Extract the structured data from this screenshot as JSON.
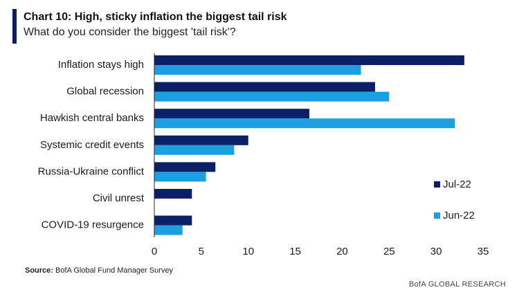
{
  "title": "Chart 10: High, sticky inflation the biggest tail risk",
  "subtitle": "What do you consider the biggest 'tail risk'?",
  "source": {
    "label": "Source:",
    "text": "BofA Global Fund Manager Survey"
  },
  "footer": "BofA GLOBAL RESEARCH",
  "chart_data": {
    "type": "bar",
    "orientation": "horizontal",
    "categories": [
      "Inflation stays high",
      "Global recession",
      "Hawkish central banks",
      "Systemic credit events",
      "Russia-Ukraine conflict",
      "Civil unrest",
      "COVID-19 resurgence"
    ],
    "series": [
      {
        "name": "Jul-22",
        "color": "#0b1f66",
        "values": [
          33,
          23.5,
          16.5,
          10,
          6.5,
          4,
          4
        ]
      },
      {
        "name": "Jun-22",
        "color": "#1aa0e0",
        "values": [
          22,
          25,
          32,
          8.5,
          5.5,
          null,
          3
        ]
      }
    ],
    "xlim": [
      0,
      35
    ],
    "xticks": [
      "0",
      "5",
      "10",
      "15",
      "20",
      "25",
      "30",
      "35"
    ],
    "grid": false,
    "legend_position": "right"
  }
}
